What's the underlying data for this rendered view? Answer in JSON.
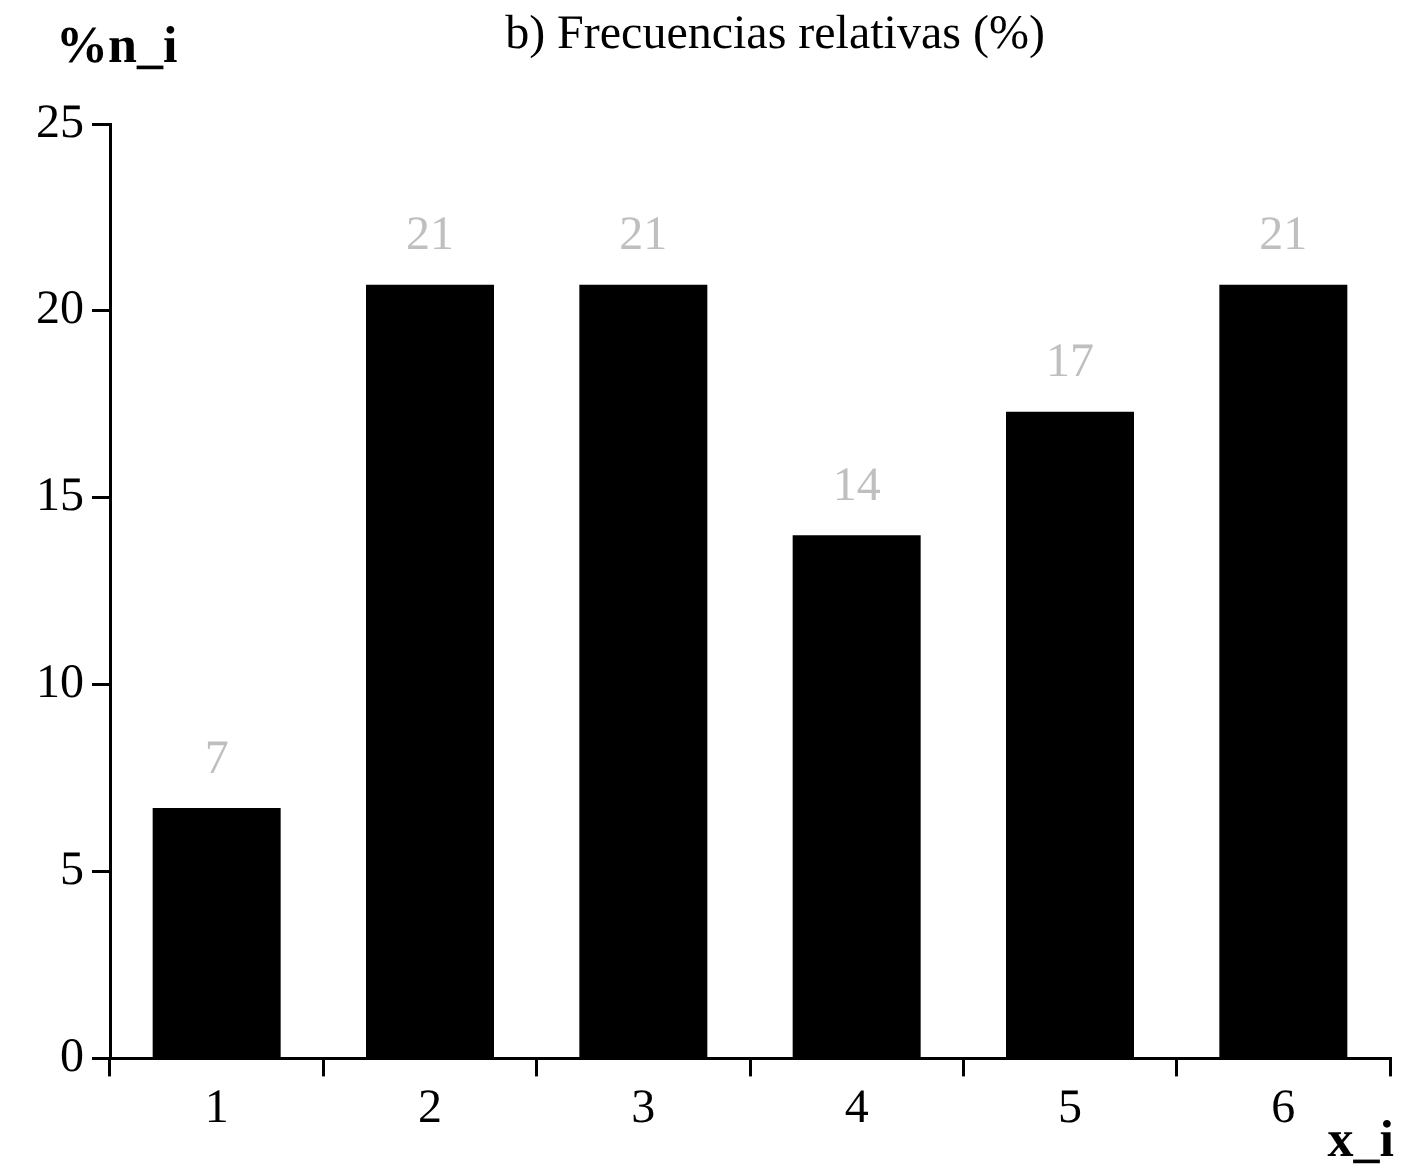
{
  "chart_data": {
    "type": "bar",
    "title": "b) Frecuencias relativas (%)",
    "xlabel": "x_i",
    "ylabel": "%n_i",
    "categories": [
      "1",
      "2",
      "3",
      "4",
      "5",
      "6"
    ],
    "values": [
      6.7,
      20.7,
      20.7,
      14,
      17.3,
      20.7
    ],
    "value_labels": [
      "7",
      "21",
      "21",
      "14",
      "17",
      "21"
    ],
    "color": "#000000",
    "ylim": [
      0,
      25
    ],
    "yticks": [
      0,
      5,
      10,
      15,
      20,
      25
    ]
  }
}
